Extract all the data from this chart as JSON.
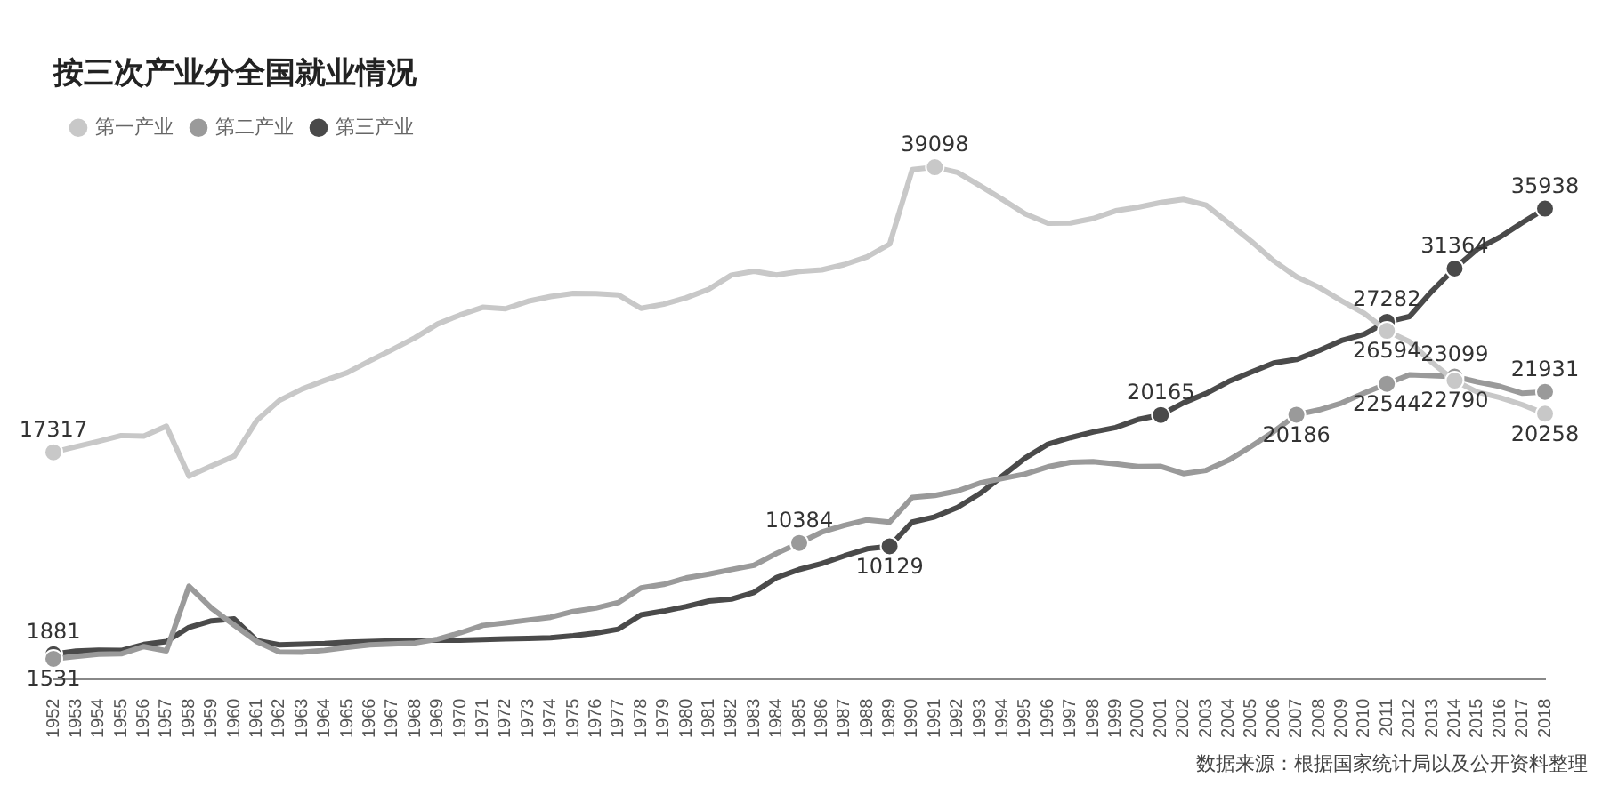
{
  "chart_data": {
    "type": "line",
    "title": "按三次产业分全国就业情况",
    "legend": "top left",
    "annotations": [
      "数据来源：根据国家统计局以及公开资料整理"
    ],
    "categories": [
      "1952",
      "1953",
      "1954",
      "1955",
      "1956",
      "1957",
      "1958",
      "1959",
      "1960",
      "1961",
      "1962",
      "1963",
      "1964",
      "1965",
      "1966",
      "1967",
      "1968",
      "1969",
      "1970",
      "1971",
      "1972",
      "1973",
      "1974",
      "1975",
      "1976",
      "1977",
      "1978",
      "1979",
      "1980",
      "1981",
      "1982",
      "1983",
      "1984",
      "1985",
      "1986",
      "1987",
      "1988",
      "1989",
      "1990",
      "1991",
      "1992",
      "1993",
      "1994",
      "1995",
      "1996",
      "1997",
      "1998",
      "1999",
      "2000",
      "2001",
      "2002",
      "2003",
      "2004",
      "2005",
      "2006",
      "2007",
      "2008",
      "2009",
      "2010",
      "2011",
      "2012",
      "2013",
      "2014",
      "2015",
      "2016",
      "2017",
      "2018"
    ],
    "series": [
      {
        "name": "第一产业",
        "color": "#c8c8c8",
        "values": [
          17317,
          17747,
          18151,
          18592,
          18544,
          19309,
          15490,
          16271,
          17016,
          19747,
          21276,
          22143,
          22803,
          23396,
          24297,
          25165,
          26063,
          27117,
          27811,
          28397,
          28283,
          28857,
          29218,
          29456,
          29443,
          29340,
          28318,
          28634,
          29122,
          29777,
          30859,
          31151,
          30868,
          31130,
          31254,
          31663,
          32249,
          33225,
          38914,
          39098,
          38699,
          37680,
          36628,
          35530,
          34820,
          34840,
          35177,
          35768,
          36043,
          36399,
          36640,
          36204,
          34830,
          33442,
          31941,
          30731,
          29923,
          28890,
          27931,
          26594,
          25773,
          24171,
          22790,
          21919,
          21496,
          20944,
          20258
        ],
        "value_labels": [
          "17317",
          null,
          null,
          null,
          null,
          null,
          null,
          null,
          null,
          null,
          null,
          null,
          null,
          null,
          null,
          null,
          null,
          null,
          null,
          null,
          null,
          null,
          null,
          null,
          null,
          null,
          null,
          null,
          null,
          null,
          null,
          null,
          null,
          null,
          null,
          null,
          null,
          null,
          null,
          "39098",
          null,
          null,
          null,
          null,
          null,
          null,
          null,
          null,
          null,
          null,
          null,
          null,
          null,
          null,
          null,
          null,
          null,
          null,
          null,
          "26594",
          null,
          null,
          "22790",
          null,
          null,
          null,
          "20258"
        ]
      },
      {
        "name": "第二产业",
        "color": "#9a9a9a",
        "values": [
          1531,
          1715,
          1882,
          1913,
          2468,
          2142,
          7076,
          5402,
          4112,
          2856,
          2059,
          2038,
          2183,
          2408,
          2600,
          2661,
          2743,
          3030,
          3518,
          4086,
          4276,
          4492,
          4712,
          5152,
          5411,
          5831,
          6945,
          7214,
          7707,
          8003,
          8346,
          8679,
          9590,
          10384,
          11216,
          11726,
          12152,
          11976,
          13856,
          14015,
          14355,
          14965,
          15312,
          15655,
          16203,
          16547,
          16600,
          16421,
          16219,
          16234,
          15682,
          15927,
          16709,
          17766,
          18894,
          20186,
          20553,
          21080,
          21842,
          22544,
          23241,
          23170,
          23099,
          22693,
          22350,
          21824,
          21931
        ],
        "value_labels": [
          "1531",
          null,
          null,
          null,
          null,
          null,
          null,
          null,
          null,
          null,
          null,
          null,
          null,
          null,
          null,
          null,
          null,
          null,
          null,
          null,
          null,
          null,
          null,
          null,
          null,
          null,
          null,
          null,
          null,
          null,
          null,
          null,
          null,
          "10384",
          null,
          null,
          null,
          null,
          null,
          null,
          null,
          null,
          null,
          null,
          null,
          null,
          null,
          null,
          null,
          null,
          null,
          null,
          null,
          null,
          null,
          "20186",
          null,
          null,
          null,
          "22544",
          null,
          null,
          "23099",
          null,
          null,
          null,
          "21931"
        ]
      },
      {
        "name": "第三产业",
        "color": "#4a4a4a",
        "values": [
          1881,
          2121,
          2186,
          2172,
          2628,
          2849,
          3940,
          4440,
          4580,
          2930,
          2600,
          2650,
          2700,
          2800,
          2850,
          2900,
          2950,
          2960,
          2960,
          3000,
          3050,
          3100,
          3150,
          3300,
          3500,
          3800,
          4890,
          5177,
          5532,
          5945,
          6090,
          6606,
          7739,
          8359,
          8811,
          9395,
          9933,
          10129,
          11979,
          12378,
          13098,
          14163,
          15515,
          16880,
          17927,
          18432,
          18860,
          19205,
          19823,
          20165,
          21090,
          21809,
          22725,
          23439,
          24143,
          24404,
          25087,
          25857,
          26332,
          27282,
          27690,
          29636,
          31364,
          32839,
          33757,
          34872,
          35938
        ],
        "value_labels": [
          "1881",
          null,
          null,
          null,
          null,
          null,
          null,
          null,
          null,
          null,
          null,
          null,
          null,
          null,
          null,
          null,
          null,
          null,
          null,
          null,
          null,
          null,
          null,
          null,
          null,
          null,
          null,
          null,
          null,
          null,
          null,
          null,
          null,
          null,
          null,
          null,
          null,
          "10129",
          null,
          null,
          null,
          null,
          null,
          null,
          null,
          null,
          null,
          null,
          null,
          "20165",
          null,
          null,
          null,
          null,
          null,
          null,
          null,
          null,
          null,
          "27282",
          null,
          null,
          "31364",
          null,
          null,
          null,
          "35938"
        ]
      }
    ]
  }
}
